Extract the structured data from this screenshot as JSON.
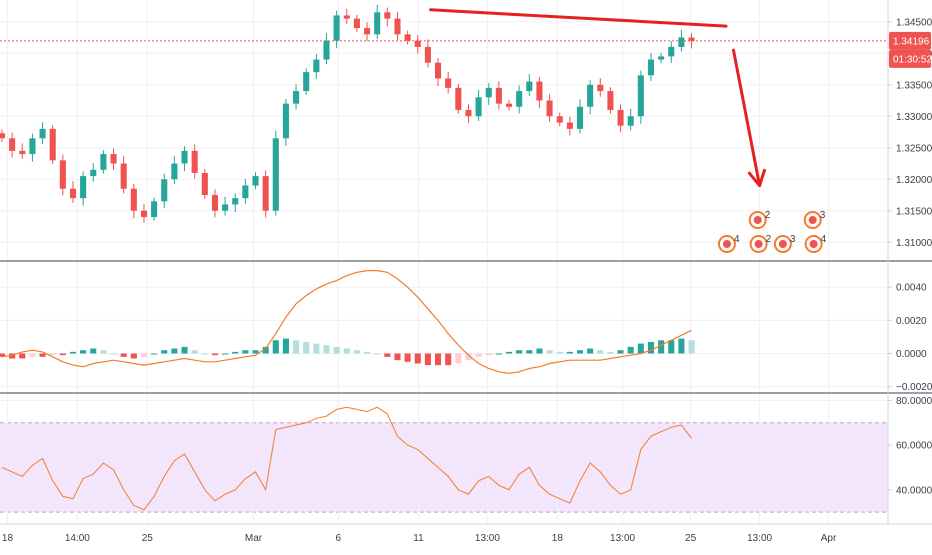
{
  "colors": {
    "up": "#26a69a",
    "down": "#ef5350",
    "macd_line": "#f57c2a",
    "hist_up_strong": "#26a69a",
    "hist_up_weak": "#b2dfdb",
    "hist_down_strong": "#ef5350",
    "hist_down_weak": "#ffcdd2",
    "rsi_line": "#f57c2a",
    "rsi_band": "#f3e5fb",
    "annotation": "#e5201f",
    "price_label_bg": "#ef5350",
    "price_label_text": "#ffffff",
    "event_icon": "#f57c2a"
  },
  "chart_data": [
    {
      "type": "candlestick",
      "pane": "price",
      "ylim": [
        1.3075,
        1.3475
      ],
      "y_ticks": [
        "1.34500",
        "1.34000",
        "1.33500",
        "1.33000",
        "1.32500",
        "1.32000",
        "1.31500",
        "1.31000"
      ],
      "y_tick_values": [
        1.345,
        1.34,
        1.335,
        1.33,
        1.325,
        1.32,
        1.315,
        1.31
      ],
      "current_price_label": "1.34196",
      "current_price": 1.34196,
      "countdown_label": "01:30:52",
      "close_path": [
        1.3265,
        1.3245,
        1.324,
        1.3265,
        1.328,
        1.323,
        1.3185,
        1.317,
        1.3205,
        1.3215,
        1.324,
        1.3225,
        1.3185,
        1.315,
        1.314,
        1.3165,
        1.32,
        1.3225,
        1.3245,
        1.321,
        1.3175,
        1.315,
        1.316,
        1.317,
        1.319,
        1.3205,
        1.315,
        1.3265,
        1.332,
        1.334,
        1.337,
        1.339,
        1.342,
        1.346,
        1.3455,
        1.344,
        1.343,
        1.3465,
        1.3455,
        1.343,
        1.342,
        1.341,
        1.3385,
        1.336,
        1.3345,
        1.331,
        1.33,
        1.333,
        1.3345,
        1.332,
        1.3315,
        1.334,
        1.3355,
        1.3325,
        1.33,
        1.329,
        1.328,
        1.3315,
        1.335,
        1.334,
        1.331,
        1.3285,
        1.33,
        1.3365,
        1.339,
        1.3395,
        1.341,
        1.3425,
        1.34196
      ],
      "annotations": [
        {
          "kind": "trendline",
          "from": [
            0.462,
            1.3469
          ],
          "to": [
            0.779,
            1.3443
          ]
        },
        {
          "kind": "arrow",
          "from": [
            0.787,
            1.3405
          ],
          "to": [
            0.815,
            1.319
          ]
        }
      ]
    },
    {
      "type": "bar+line",
      "pane": "macd",
      "ylim": [
        -0.0022,
        0.0054
      ],
      "y_ticks": [
        "0.0040",
        "0.0020",
        "0.0000",
        "−0.0020"
      ],
      "y_tick_values": [
        0.004,
        0.002,
        0.0,
        -0.002
      ],
      "histogram": [
        -0.0002,
        -0.0003,
        -0.0003,
        -0.0002,
        -0.0002,
        -0.0001,
        -0.0001,
        0.0001,
        0.0002,
        0.0003,
        0.0002,
        0.0,
        -0.0002,
        -0.0003,
        -0.0002,
        0.0,
        0.0002,
        0.0003,
        0.0004,
        0.0002,
        0.0,
        -0.0001,
        0.0,
        0.0001,
        0.0002,
        0.0002,
        0.0004,
        0.0008,
        0.0009,
        0.0008,
        0.0007,
        0.0006,
        0.0005,
        0.0004,
        0.0003,
        0.0002,
        0.0001,
        0.0,
        -0.0002,
        -0.0004,
        -0.0005,
        -0.0006,
        -0.0007,
        -0.0007,
        -0.0007,
        -0.0006,
        -0.0004,
        -0.0002,
        -0.0001,
        0.0,
        0.0001,
        0.0002,
        0.0002,
        0.0003,
        0.0002,
        0.0001,
        0.0001,
        0.0002,
        0.0003,
        0.0002,
        0.0001,
        0.0002,
        0.0004,
        0.0006,
        0.0007,
        0.0008,
        0.0008,
        0.0009,
        0.0008
      ],
      "signal_line": [
        -0.0002,
        -0.0001,
        0.0001,
        0.0002,
        0.0001,
        -0.0002,
        -0.0005,
        -0.0007,
        -0.0008,
        -0.0006,
        -0.0005,
        -0.0004,
        -0.0005,
        -0.0006,
        -0.0007,
        -0.0006,
        -0.0005,
        -0.0004,
        -0.0003,
        -0.0004,
        -0.0005,
        -0.0005,
        -0.0004,
        -0.0003,
        -0.0002,
        -0.0001,
        0.0003,
        0.0012,
        0.0022,
        0.003,
        0.0035,
        0.0039,
        0.0042,
        0.0044,
        0.0047,
        0.0049,
        0.005,
        0.005,
        0.0049,
        0.0045,
        0.004,
        0.0034,
        0.0027,
        0.002,
        0.0012,
        0.0005,
        -0.0001,
        -0.0006,
        -0.0009,
        -0.0011,
        -0.0012,
        -0.0011,
        -0.0009,
        -0.0008,
        -0.0006,
        -0.0005,
        -0.0004,
        -0.0004,
        -0.0004,
        -0.0004,
        -0.0003,
        -0.0002,
        -0.0001,
        0.0,
        0.0002,
        0.0005,
        0.0008,
        0.0011,
        0.0014
      ]
    },
    {
      "type": "line",
      "pane": "rsi",
      "ylim": [
        26,
        82
      ],
      "y_ticks": [
        "80.0000",
        "60.0000",
        "40.0000"
      ],
      "y_tick_values": [
        80,
        60,
        40
      ],
      "band": [
        30,
        70
      ],
      "values": [
        50,
        48,
        46,
        51,
        54,
        44,
        37,
        36,
        45,
        47,
        52,
        49,
        40,
        33,
        31,
        37,
        46,
        53,
        56,
        48,
        40,
        35,
        38,
        40,
        45,
        48,
        40,
        67,
        68,
        69,
        70,
        72,
        73,
        76,
        77,
        76,
        75,
        77,
        74,
        64,
        60,
        58,
        54,
        50,
        46,
        40,
        38,
        44,
        46,
        42,
        40,
        47,
        50,
        42,
        38,
        36,
        34,
        44,
        52,
        48,
        42,
        38,
        40,
        58,
        64,
        66,
        68,
        69,
        63
      ]
    }
  ],
  "x_ticks": [
    {
      "label": "18",
      "pos": 0.008
    },
    {
      "label": "14:00",
      "pos": 0.083
    },
    {
      "label": "25",
      "pos": 0.158
    },
    {
      "label": "Mar",
      "pos": 0.272
    },
    {
      "label": "6",
      "pos": 0.363
    },
    {
      "label": "11",
      "pos": 0.449
    },
    {
      "label": "13:00",
      "pos": 0.523
    },
    {
      "label": "18",
      "pos": 0.598
    },
    {
      "label": "13:00",
      "pos": 0.668
    },
    {
      "label": "25",
      "pos": 0.741
    },
    {
      "label": "13:00",
      "pos": 0.815
    },
    {
      "label": "Apr",
      "pos": 0.889
    }
  ],
  "events": [
    {
      "glyph": "4",
      "pos": 0.78,
      "row": 2
    },
    {
      "glyph": "2",
      "pos": 0.813,
      "row": 1
    },
    {
      "glyph": "2",
      "pos": 0.814,
      "row": 2
    },
    {
      "glyph": "3",
      "pos": 0.84,
      "row": 2
    },
    {
      "glyph": "3",
      "pos": 0.872,
      "row": 1
    },
    {
      "glyph": "4",
      "pos": 0.873,
      "row": 2
    }
  ]
}
